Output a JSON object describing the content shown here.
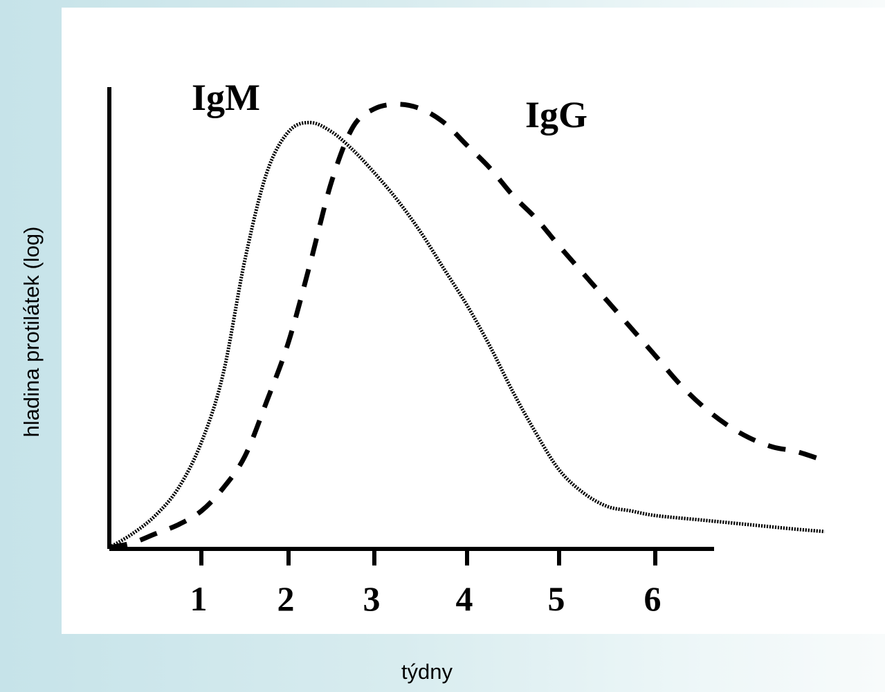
{
  "chart_data": {
    "type": "line",
    "xlabel": "týdny",
    "ylabel": "hladina protilátek (log)",
    "x_ticks": [
      "1",
      "2",
      "3",
      "4",
      "5",
      "6"
    ],
    "x_tick_values": [
      1,
      2,
      3,
      4,
      5,
      6
    ],
    "xlim": [
      0,
      7.8
    ],
    "ylim": [
      0,
      100
    ],
    "y_scale": "log",
    "grid": false,
    "series": [
      {
        "name": "IgM",
        "line_style": "dotted",
        "color": "#000000",
        "x": [
          0,
          0.25,
          0.5,
          0.75,
          1.0,
          1.25,
          1.5,
          1.75,
          2.0,
          2.25,
          2.5,
          2.75,
          3.0,
          3.25,
          3.5,
          3.75,
          4.0,
          4.25,
          4.5,
          4.75,
          5.0,
          5.25,
          5.5,
          5.75,
          6.0,
          6.5,
          7.0,
          7.5,
          7.8
        ],
        "values": [
          0,
          3,
          7,
          13,
          23,
          38,
          63,
          82,
          91,
          93,
          91,
          87,
          82,
          76,
          69,
          61,
          53,
          44,
          34,
          25,
          17,
          12,
          9,
          8,
          7,
          6,
          5,
          4,
          3.5
        ]
      },
      {
        "name": "IgG",
        "line_style": "dashed",
        "color": "#000000",
        "x": [
          0,
          0.25,
          0.5,
          0.75,
          1.0,
          1.25,
          1.5,
          1.75,
          2.0,
          2.25,
          2.5,
          2.75,
          3.0,
          3.25,
          3.5,
          3.75,
          4.0,
          4.25,
          4.5,
          4.75,
          5.0,
          5.25,
          5.5,
          5.75,
          6.0,
          6.25,
          6.5,
          6.75,
          7.0,
          7.25,
          7.5,
          7.8
        ],
        "values": [
          0,
          1,
          3,
          5,
          8,
          13,
          20,
          32,
          45,
          62,
          80,
          92,
          96,
          97,
          96,
          93,
          88,
          83,
          77,
          72,
          66,
          60,
          54,
          48,
          42,
          36,
          31,
          27,
          24,
          22,
          21,
          19
        ]
      }
    ]
  }
}
